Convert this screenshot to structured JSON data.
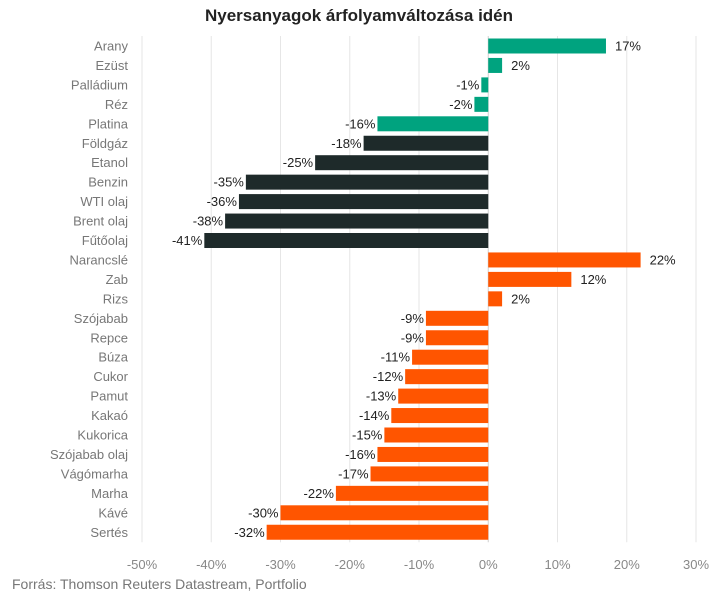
{
  "chart_data": {
    "type": "bar",
    "orientation": "horizontal",
    "title": "Nyersanyagok árfolyamváltozása idén",
    "xlabel": "",
    "ylabel": "",
    "xlim": [
      -50,
      30
    ],
    "xticks": [
      -50,
      -40,
      -30,
      -20,
      -10,
      0,
      10,
      20,
      30
    ],
    "tick_suffix": "%",
    "grid": true,
    "categories": [
      "Arany",
      "Ezüst",
      "Palládium",
      "Réz",
      "Platina",
      "Földgáz",
      "Etanol",
      "Benzin",
      "WTI olaj",
      "Brent olaj",
      "Fűtőolaj",
      "Narancslé",
      "Zab",
      "Rizs",
      "Szójabab",
      "Repce",
      "Búza",
      "Cukor",
      "Pamut",
      "Kakaó",
      "Kukorica",
      "Szójabab olaj",
      "Vágómarha",
      "Marha",
      "Kávé",
      "Sertés"
    ],
    "values": [
      17,
      2,
      -1,
      -2,
      -16,
      -18,
      -25,
      -35,
      -36,
      -38,
      -41,
      22,
      12,
      2,
      -9,
      -9,
      -11,
      -12,
      -13,
      -14,
      -15,
      -16,
      -17,
      -22,
      -30,
      -32
    ],
    "labels": [
      "17%",
      "2%",
      "-1%",
      "-2%",
      "-16%",
      "-18%",
      "-25%",
      "-35%",
      "-36%",
      "-38%",
      "-41%",
      "22%",
      "12%",
      "2%",
      "-9%",
      "-9%",
      "-11%",
      "-12%",
      "-13%",
      "-14%",
      "-15%",
      "-16%",
      "-17%",
      "-22%",
      "-30%",
      "-32%"
    ],
    "groups": [
      {
        "count": 5,
        "color": "#00a37f"
      },
      {
        "count": 6,
        "color": "#1e2a2a"
      },
      {
        "count": 15,
        "color": "#ff5500"
      }
    ]
  },
  "source": "Forrás: Thomson Reuters Datastream, Portfolio"
}
